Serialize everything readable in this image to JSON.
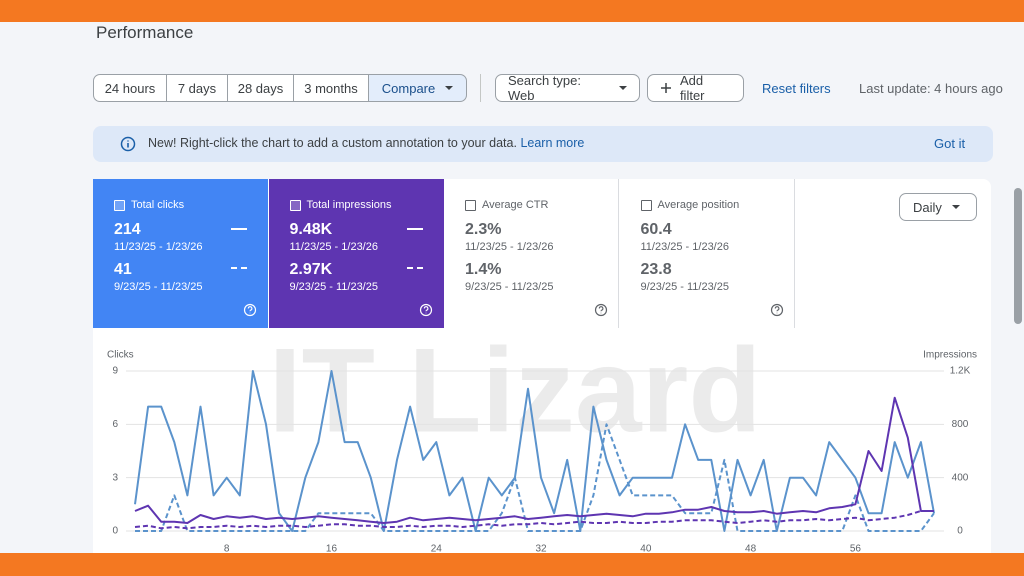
{
  "header": {
    "title": "Performance"
  },
  "toolbar": {
    "ranges": [
      "24 hours",
      "7 days",
      "28 days",
      "3 months",
      "Compare"
    ],
    "search_type": "Search type: Web",
    "add_filter": "Add filter",
    "reset": "Reset filters",
    "last_update": "Last update: 4 hours ago"
  },
  "banner": {
    "text": "New! Right-click the chart to add a custom annotation to your data.",
    "link": "Learn more",
    "dismiss": "Got it"
  },
  "metrics": [
    {
      "label": "Total clicks",
      "value": "214",
      "range": "11/23/25 - 1/23/26",
      "prev_value": "41",
      "prev_range": "9/23/25 - 11/23/25",
      "color": "#4285f4",
      "checked": true
    },
    {
      "label": "Total impressions",
      "value": "9.48K",
      "range": "11/23/25 - 1/23/26",
      "prev_value": "2.97K",
      "prev_range": "9/23/25 - 11/23/25",
      "color": "#5e35b1",
      "checked": true
    },
    {
      "label": "Average CTR",
      "value": "2.3%",
      "range": "11/23/25 - 1/23/26",
      "prev_value": "1.4%",
      "prev_range": "9/23/25 - 11/23/25",
      "color": "#ffffff",
      "checked": false
    },
    {
      "label": "Average position",
      "value": "60.4",
      "range": "11/23/25 - 1/23/26",
      "prev_value": "23.8",
      "prev_range": "9/23/25 - 11/23/25",
      "color": "#ffffff",
      "checked": false
    }
  ],
  "granularity": "Daily",
  "watermark": "IT Lizard",
  "chart_data": {
    "type": "line",
    "y_label": "Clicks",
    "y2_label": "Impressions",
    "x": [
      1,
      2,
      3,
      4,
      5,
      6,
      7,
      8,
      9,
      10,
      11,
      12,
      13,
      14,
      15,
      16,
      17,
      18,
      19,
      20,
      21,
      22,
      23,
      24,
      25,
      26,
      27,
      28,
      29,
      30,
      31,
      32,
      33,
      34,
      35,
      36,
      37,
      38,
      39,
      40,
      41,
      42,
      43,
      44,
      45,
      46,
      47,
      48,
      49,
      50,
      51,
      52,
      53,
      54,
      55,
      56,
      57,
      58,
      59,
      60,
      61,
      62
    ],
    "xlim": [
      1,
      62
    ],
    "xticks": [
      8,
      16,
      24,
      32,
      40,
      48,
      56
    ],
    "ylim": [
      0,
      9
    ],
    "yticks": [
      0,
      3,
      6,
      9
    ],
    "y2lim": [
      0,
      1200
    ],
    "y2ticks": [
      0,
      400,
      800,
      {
        "value": 1200,
        "label": "1.2K"
      }
    ],
    "grid": true,
    "series": [
      {
        "color": "#5b93cc",
        "dashed": false,
        "values": [
          1.5,
          7,
          7,
          5,
          2,
          7,
          2,
          3,
          2,
          9,
          6,
          1,
          0,
          3,
          5,
          9,
          5,
          5,
          3,
          0,
          4,
          7,
          4,
          5,
          2,
          3,
          0,
          3,
          2,
          3,
          8,
          3,
          1,
          4,
          0,
          7,
          4,
          2,
          3,
          3,
          3,
          3,
          6,
          4,
          4,
          0,
          4,
          2,
          4,
          0,
          3,
          3,
          2,
          5,
          4,
          3,
          1,
          1,
          5,
          3,
          5,
          1
        ]
      },
      {
        "color": "#5b93cc",
        "dashed": true,
        "values": [
          0,
          0,
          0,
          2,
          0,
          0,
          0,
          0,
          0,
          0,
          0,
          0,
          0,
          0,
          1,
          1,
          1,
          1,
          1,
          0,
          0,
          0,
          0,
          0,
          0,
          0,
          0,
          0,
          1,
          3,
          0,
          0,
          0,
          0,
          0,
          2,
          6,
          4,
          2,
          2,
          2,
          2,
          1,
          1,
          1,
          4,
          0,
          0,
          0,
          0,
          0,
          0,
          0,
          0,
          0,
          2,
          0,
          0,
          0,
          0,
          0,
          1
        ]
      },
      {
        "color": "#5e35b1",
        "dashed": false,
        "axis": "y2",
        "values": [
          150,
          190,
          70,
          70,
          60,
          120,
          90,
          110,
          100,
          110,
          90,
          100,
          90,
          100,
          110,
          100,
          90,
          80,
          70,
          60,
          70,
          100,
          80,
          90,
          100,
          90,
          80,
          90,
          100,
          110,
          90,
          100,
          110,
          120,
          110,
          120,
          130,
          120,
          110,
          130,
          130,
          140,
          160,
          160,
          180,
          150,
          140,
          140,
          150,
          130,
          140,
          150,
          140,
          170,
          180,
          200,
          600,
          450,
          1000,
          700,
          150,
          150
        ]
      },
      {
        "color": "#5e35b1",
        "dashed": true,
        "axis": "y2",
        "values": [
          30,
          40,
          20,
          30,
          20,
          30,
          30,
          40,
          30,
          40,
          30,
          40,
          40,
          30,
          40,
          50,
          50,
          40,
          40,
          30,
          30,
          40,
          30,
          40,
          40,
          30,
          40,
          50,
          40,
          50,
          50,
          60,
          50,
          60,
          70,
          60,
          60,
          70,
          60,
          60,
          70,
          70,
          80,
          80,
          80,
          70,
          60,
          70,
          80,
          70,
          80,
          80,
          90,
          80,
          90,
          100,
          80,
          90,
          100,
          120,
          150,
          150
        ]
      }
    ]
  }
}
